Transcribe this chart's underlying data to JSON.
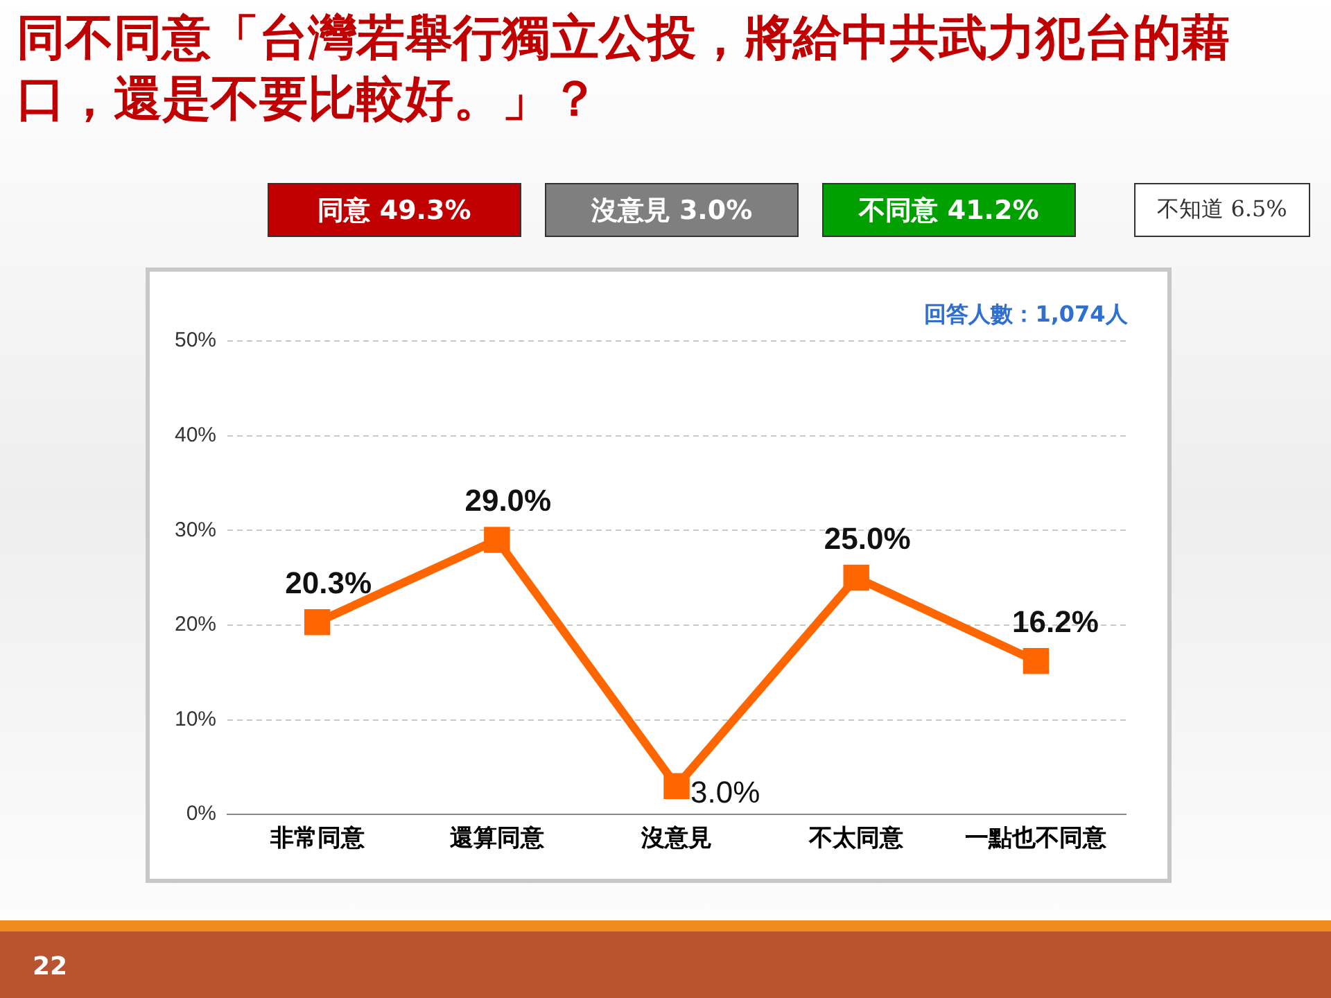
{
  "chart_data": {
    "type": "line",
    "title": "同不同意「台灣若舉行獨立公投，將給中共武力犯台的藉口，還是不要比較好。」？",
    "categories": [
      "非常同意",
      "還算同意",
      "沒意見",
      "不太同意",
      "一點也不同意"
    ],
    "series": [
      {
        "color": "#ff6600",
        "values": [
          20.3,
          29.0,
          3.0,
          25.0,
          16.2
        ],
        "value_labels": [
          "20.3%",
          "29.0%",
          "3.0%",
          "25.0%",
          "16.2%"
        ]
      }
    ],
    "ylim": [
      0,
      50
    ],
    "yticks": [
      {
        "value": 0,
        "label": "0%"
      },
      {
        "value": 10,
        "label": "10%"
      },
      {
        "value": 20,
        "label": "20%"
      },
      {
        "value": 30,
        "label": "30%"
      },
      {
        "value": 40,
        "label": "40%"
      },
      {
        "value": 50,
        "label": "50%"
      }
    ],
    "grid": "y",
    "legend": false,
    "marker": "square",
    "line_style": "solid",
    "annotations": [
      "同意 49.3%",
      "沒意見 3.0%",
      "不同意 41.2%",
      "不知道 6.5%",
      "回答人數：1,074人",
      "22"
    ]
  }
}
